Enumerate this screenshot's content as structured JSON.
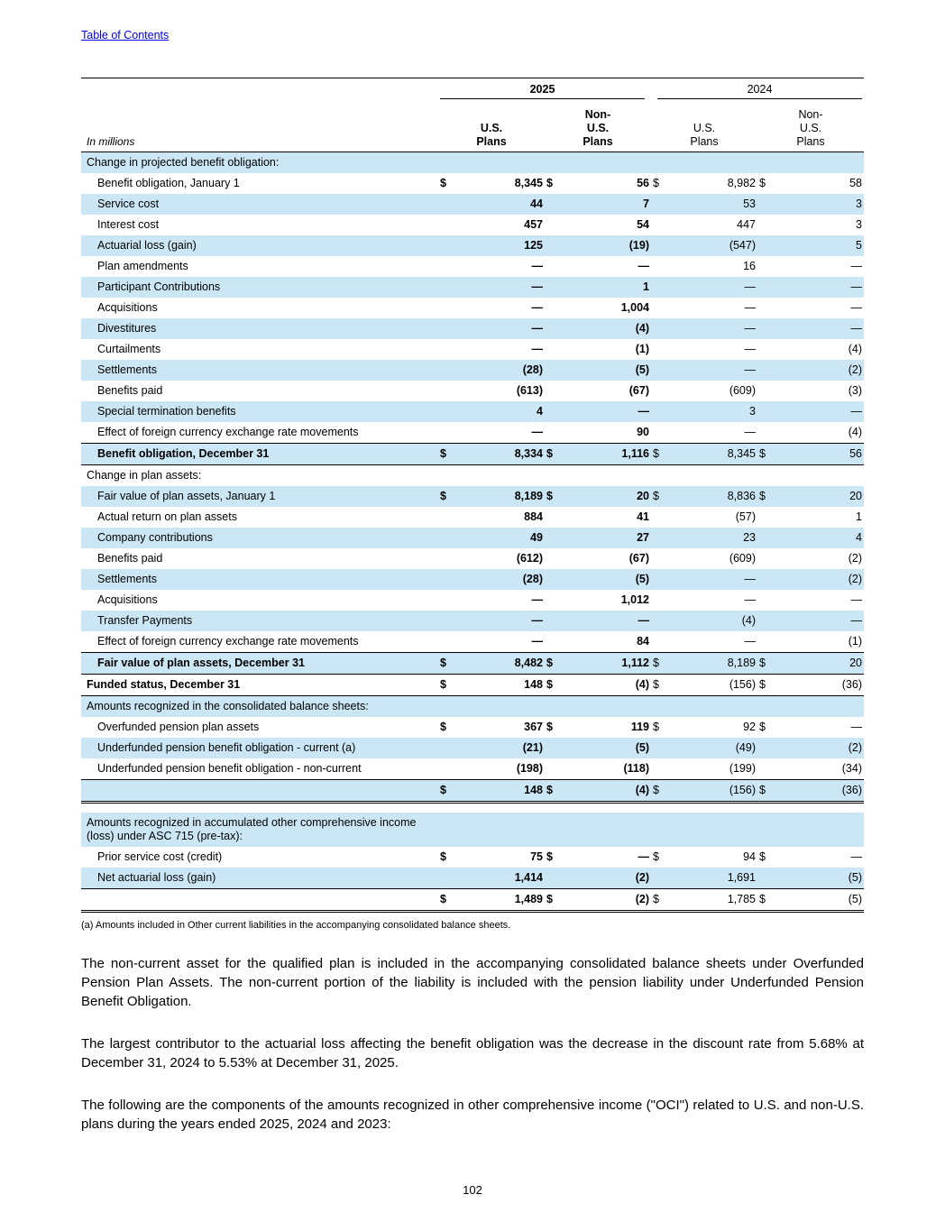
{
  "page": {
    "toc_link": "Table of Contents",
    "page_number": "102"
  },
  "colors": {
    "row_shade": "#cbe7f5",
    "link_blue": "#0000EE"
  },
  "table": {
    "year_headers": [
      "2025",
      "2024"
    ],
    "in_millions": "In millions",
    "col_headers": [
      "U.S.\nPlans",
      "Non-\nU.S.\nPlans",
      "U.S.\nPlans",
      "Non-\nU.S.\nPlans"
    ],
    "rows": [
      {
        "type": "section",
        "label": "Change in projected benefit obligation:",
        "shade": true
      },
      {
        "type": "data",
        "label": "Benefit obligation, January 1",
        "indent": true,
        "dollar": true,
        "v": [
          "8,345",
          "56",
          "8,982",
          "58"
        ]
      },
      {
        "type": "data",
        "label": "Service cost",
        "indent": true,
        "shade": true,
        "v": [
          "44",
          "7",
          "53",
          "3"
        ]
      },
      {
        "type": "data",
        "label": "Interest cost",
        "indent": true,
        "v": [
          "457",
          "54",
          "447",
          "3"
        ]
      },
      {
        "type": "data",
        "label": "Actuarial loss (gain)",
        "indent": true,
        "shade": true,
        "v": [
          "125",
          "(19)",
          "(547)",
          "5"
        ]
      },
      {
        "type": "data",
        "label": "Plan amendments",
        "indent": true,
        "v": [
          "—",
          "—",
          "16",
          "—"
        ]
      },
      {
        "type": "data",
        "label": "Participant Contributions",
        "indent": true,
        "shade": true,
        "v": [
          "—",
          "1",
          "—",
          "—"
        ]
      },
      {
        "type": "data",
        "label": "Acquisitions",
        "indent": true,
        "v": [
          "—",
          "1,004",
          "—",
          "—"
        ]
      },
      {
        "type": "data",
        "label": "Divestitures",
        "indent": true,
        "shade": true,
        "v": [
          "—",
          "(4)",
          "—",
          "—"
        ]
      },
      {
        "type": "data",
        "label": "Curtailments",
        "indent": true,
        "v": [
          "—",
          "(1)",
          "—",
          "(4)"
        ]
      },
      {
        "type": "data",
        "label": "Settlements",
        "indent": true,
        "shade": true,
        "v": [
          "(28)",
          "(5)",
          "—",
          "(2)"
        ]
      },
      {
        "type": "data",
        "label": "Benefits paid",
        "indent": true,
        "v": [
          "(613)",
          "(67)",
          "(609)",
          "(3)"
        ]
      },
      {
        "type": "data",
        "label": "Special termination benefits",
        "indent": true,
        "shade": true,
        "v": [
          "4",
          "—",
          "3",
          "—"
        ]
      },
      {
        "type": "data",
        "label": "Effect of foreign currency exchange rate movements",
        "indent": true,
        "v": [
          "—",
          "90",
          "—",
          "(4)"
        ]
      },
      {
        "type": "total",
        "label": "Benefit obligation, December 31",
        "indent": true,
        "shade": true,
        "dollar": true,
        "bt": true,
        "bb": true,
        "v": [
          "8,334",
          "1,116",
          "8,345",
          "56"
        ]
      },
      {
        "type": "section",
        "label": "Change in plan assets:"
      },
      {
        "type": "data",
        "label": "Fair value of plan assets, January 1",
        "indent": true,
        "shade": true,
        "dollar": true,
        "v": [
          "8,189",
          "20",
          "8,836",
          "20"
        ]
      },
      {
        "type": "data",
        "label": "Actual return on plan assets",
        "indent": true,
        "v": [
          "884",
          "41",
          "(57)",
          "1"
        ]
      },
      {
        "type": "data",
        "label": "Company contributions",
        "indent": true,
        "shade": true,
        "v": [
          "49",
          "27",
          "23",
          "4"
        ]
      },
      {
        "type": "data",
        "label": "Benefits paid",
        "indent": true,
        "v": [
          "(612)",
          "(67)",
          "(609)",
          "(2)"
        ]
      },
      {
        "type": "data",
        "label": "Settlements",
        "indent": true,
        "shade": true,
        "v": [
          "(28)",
          "(5)",
          "—",
          "(2)"
        ]
      },
      {
        "type": "data",
        "label": "Acquisitions",
        "indent": true,
        "v": [
          "—",
          "1,012",
          "—",
          "—"
        ]
      },
      {
        "type": "data",
        "label": "Transfer Payments",
        "indent": true,
        "shade": true,
        "v": [
          "—",
          "—",
          "(4)",
          "—"
        ]
      },
      {
        "type": "data",
        "label": "Effect of foreign currency exchange rate movements",
        "indent": true,
        "v": [
          "—",
          "84",
          "—",
          "(1)"
        ]
      },
      {
        "type": "total",
        "label": "Fair value of plan assets, December 31",
        "indent": true,
        "shade": true,
        "dollar": true,
        "bt": true,
        "bb": true,
        "v": [
          "8,482",
          "1,112",
          "8,189",
          "20"
        ]
      },
      {
        "type": "total",
        "label": "Funded status, December 31",
        "dollar": true,
        "bb": true,
        "v": [
          "148",
          "(4)",
          "(156)",
          "(36)"
        ]
      },
      {
        "type": "section",
        "label": "Amounts recognized in the consolidated balance sheets:",
        "shade": true
      },
      {
        "type": "data",
        "label": "Overfunded pension plan assets",
        "indent": true,
        "dollar": true,
        "v": [
          "367",
          "119",
          "92",
          "—"
        ]
      },
      {
        "type": "data",
        "label": "Underfunded pension benefit obligation - current (a)",
        "indent": true,
        "shade": true,
        "v": [
          "(21)",
          "(5)",
          "(49)",
          "(2)"
        ]
      },
      {
        "type": "data",
        "label": "Underfunded pension benefit obligation - non-current",
        "indent": true,
        "v": [
          "(198)",
          "(118)",
          "(199)",
          "(34)"
        ]
      },
      {
        "type": "total",
        "label": "",
        "shade": true,
        "dollar": true,
        "bt": true,
        "dbb": true,
        "v": [
          "148",
          "(4)",
          "(156)",
          "(36)"
        ]
      },
      {
        "type": "gap"
      },
      {
        "type": "section",
        "label": "Amounts recognized in accumulated other comprehensive income (loss) under ASC 715 (pre-tax):",
        "shade": true
      },
      {
        "type": "data",
        "label": "Prior service cost (credit)",
        "indent": true,
        "dollar": true,
        "v": [
          "75",
          "—",
          "94",
          "—"
        ]
      },
      {
        "type": "data",
        "label": "Net actuarial loss (gain)",
        "indent": true,
        "shade": true,
        "v": [
          "1,414",
          "(2)",
          "1,691",
          "(5)"
        ]
      },
      {
        "type": "total",
        "label": "",
        "dollar": true,
        "bt": true,
        "dbb": true,
        "v": [
          "1,489",
          "(2)",
          "1,785",
          "(5)"
        ]
      }
    ]
  },
  "footnote": "(a) Amounts included in Other current liabilities in the accompanying consolidated balance sheets.",
  "paragraphs": [
    "The non-current asset for the qualified plan is included in the accompanying consolidated balance sheets under Overfunded Pension Plan Assets. The non-current portion of the liability is included with the pension liability under Underfunded Pension Benefit Obligation.",
    "The largest contributor to the actuarial loss affecting the benefit obligation was the decrease in the discount rate from 5.68% at December 31, 2024 to 5.53% at December 31, 2025.",
    "The following are the components of the amounts recognized in other comprehensive income (\"OCI\") related to U.S. and non-U.S. plans during the years ended 2025, 2024 and 2023:"
  ]
}
